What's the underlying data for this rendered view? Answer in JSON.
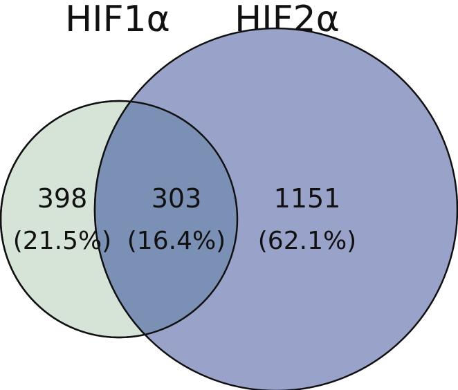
{
  "sets": [
    {
      "name": "HIF1α",
      "fill": "#d5e4d7",
      "stroke": "#111111"
    },
    {
      "name": "HIF2α",
      "fill": "#99a3c9",
      "stroke": "#111111"
    }
  ],
  "overlap_fill": "#7b90b5",
  "regions": [
    {
      "id": "hif1-only",
      "count": "398",
      "percent": "(21.5%)"
    },
    {
      "id": "both",
      "count": "303",
      "percent": "(16.4%)"
    },
    {
      "id": "hif2-only",
      "count": "1151",
      "percent": "(62.1%)"
    }
  ]
}
